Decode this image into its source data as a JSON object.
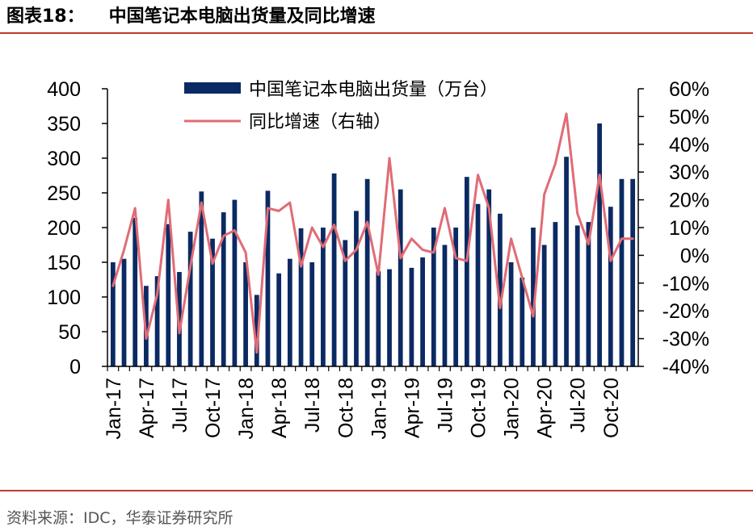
{
  "header": {
    "figure_number": "图表18：",
    "title": "中国笔记本电脑出货量及同比增速"
  },
  "footer": {
    "source": "资料来源：IDC，华泰证券研究所"
  },
  "colors": {
    "bar": "#0b2a63",
    "line": "#e06c75",
    "rule": "#c0392b"
  },
  "chart_data": {
    "type": "bar",
    "title": "",
    "grid": false,
    "legend_placement": "top",
    "categories": [
      "Jan-17",
      "Feb-17",
      "Mar-17",
      "Apr-17",
      "May-17",
      "Jun-17",
      "Jul-17",
      "Aug-17",
      "Sep-17",
      "Oct-17",
      "Nov-17",
      "Dec-17",
      "Jan-18",
      "Feb-18",
      "Mar-18",
      "Apr-18",
      "May-18",
      "Jun-18",
      "Jul-18",
      "Aug-18",
      "Sep-18",
      "Oct-18",
      "Nov-18",
      "Dec-18",
      "Jan-19",
      "Feb-19",
      "Mar-19",
      "Apr-19",
      "May-19",
      "Jun-19",
      "Jul-19",
      "Aug-19",
      "Sep-19",
      "Oct-19",
      "Nov-19",
      "Dec-19",
      "Jan-20",
      "Feb-20",
      "Mar-20",
      "Apr-20",
      "May-20",
      "Jun-20",
      "Jul-20",
      "Aug-20",
      "Sep-20",
      "Oct-20",
      "Nov-20",
      "Dec-20"
    ],
    "x_tick_labels": [
      "Jan-17",
      "Apr-17",
      "Jul-17",
      "Oct-17",
      "Jan-18",
      "Apr-18",
      "Jul-18",
      "Oct-18",
      "Jan-19",
      "Apr-19",
      "Jul-19",
      "Oct-19",
      "Jan-20",
      "Apr-20",
      "Jul-20",
      "Oct-20"
    ],
    "left_axis": {
      "ylim": [
        0,
        400
      ],
      "ticks": [
        "0",
        "50",
        "100",
        "150",
        "200",
        "250",
        "300",
        "350",
        "400"
      ],
      "tick_values": [
        0,
        50,
        100,
        150,
        200,
        250,
        300,
        350,
        400
      ]
    },
    "right_axis": {
      "ylim": [
        -40,
        60
      ],
      "ticks": [
        "-40%",
        "-30%",
        "-20%",
        "-10%",
        "0%",
        "10%",
        "20%",
        "30%",
        "40%",
        "50%",
        "60%"
      ],
      "tick_values": [
        -40,
        -30,
        -20,
        -10,
        0,
        10,
        20,
        30,
        40,
        50,
        60
      ]
    },
    "series": [
      {
        "name": "中国笔记本电脑出货量（万台）",
        "kind": "bar",
        "axis": "left",
        "values": [
          150,
          155,
          214,
          116,
          130,
          205,
          136,
          194,
          252,
          184,
          222,
          240,
          150,
          103,
          253,
          134,
          155,
          199,
          150,
          200,
          278,
          182,
          224,
          270,
          137,
          140,
          255,
          142,
          157,
          200,
          175,
          200,
          273,
          234,
          255,
          220,
          150,
          128,
          200,
          175,
          208,
          302,
          203,
          208,
          350,
          230,
          270,
          270
        ]
      },
      {
        "name": "同比增速（右轴）",
        "kind": "line",
        "axis": "right",
        "values": [
          -11,
          2,
          17,
          -30,
          -14,
          20,
          -28,
          -4,
          19,
          -3,
          7,
          9,
          1,
          -35,
          17,
          16,
          19,
          -4,
          10,
          3,
          11,
          -2,
          2,
          12,
          -7,
          35,
          -1,
          6,
          2,
          1,
          17,
          -1,
          -2,
          29,
          17,
          -19,
          6,
          -8,
          -22,
          22,
          33,
          51,
          15,
          4,
          29,
          -2,
          6,
          6
        ]
      }
    ]
  }
}
